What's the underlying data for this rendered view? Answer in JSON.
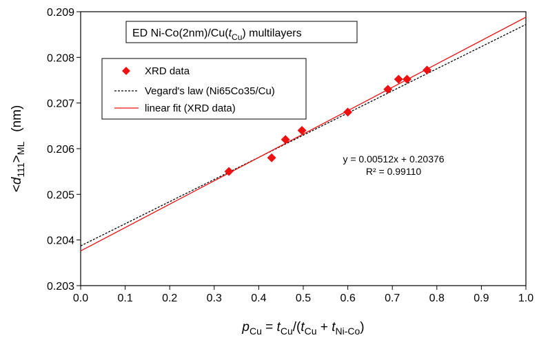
{
  "chart_data": {
    "type": "scatter",
    "title": {
      "prefix": "ED Ni-Co(2nm)/Cu(",
      "var": "t",
      "var_sub": "Cu",
      "suffix": ") multilayers"
    },
    "xlabel": {
      "p": "p",
      "p_sub": "Cu",
      "eq": " = ",
      "t1": "t",
      "t1_sub": "Cu",
      "mid": "/(",
      "t2": "t",
      "t2_sub": "Cu",
      "plus": " + ",
      "t3": "t",
      "t3_sub": "Ni-Co",
      "close": ")"
    },
    "ylabel": {
      "lt": "<",
      "d": "d",
      "d_sub": "111",
      "gt": ">",
      "gt_sub": "ML",
      "unit": "(nm)"
    },
    "xlim": [
      0.0,
      1.0
    ],
    "ylim": [
      0.203,
      0.209
    ],
    "x_ticks": [
      "0.0",
      "0.1",
      "0.2",
      "0.3",
      "0.4",
      "0.5",
      "0.6",
      "0.7",
      "0.8",
      "0.9",
      "1.0"
    ],
    "y_ticks": [
      "0.203",
      "0.204",
      "0.205",
      "0.206",
      "0.207",
      "0.208",
      "0.209"
    ],
    "grid": false,
    "legend_position": "top-left",
    "series": [
      {
        "name": "XRD data",
        "kind": "scatter",
        "marker": "diamond",
        "color": "#ee1111",
        "points": [
          [
            0.333,
            0.2055
          ],
          [
            0.429,
            0.2058
          ],
          [
            0.46,
            0.2062
          ],
          [
            0.497,
            0.2064
          ],
          [
            0.6,
            0.2068
          ],
          [
            0.69,
            0.2073
          ],
          [
            0.714,
            0.20752
          ],
          [
            0.733,
            0.20752
          ],
          [
            0.778,
            0.20772
          ]
        ]
      },
      {
        "name": "Vegard's law (Ni65Co35/Cu)",
        "kind": "line",
        "style": "dashed",
        "color": "#000000",
        "points": [
          [
            0.0,
            0.20387
          ],
          [
            1.0,
            0.20872
          ]
        ]
      },
      {
        "name": "linear fit (XRD data)",
        "kind": "line",
        "style": "solid",
        "color": "#ee1111",
        "points": [
          [
            0.0,
            0.20376
          ],
          [
            1.0,
            0.20888
          ]
        ]
      }
    ],
    "annotation": {
      "equation": "y = 0.00512x + 0.20376",
      "r2": "R² = 0.99110"
    }
  }
}
